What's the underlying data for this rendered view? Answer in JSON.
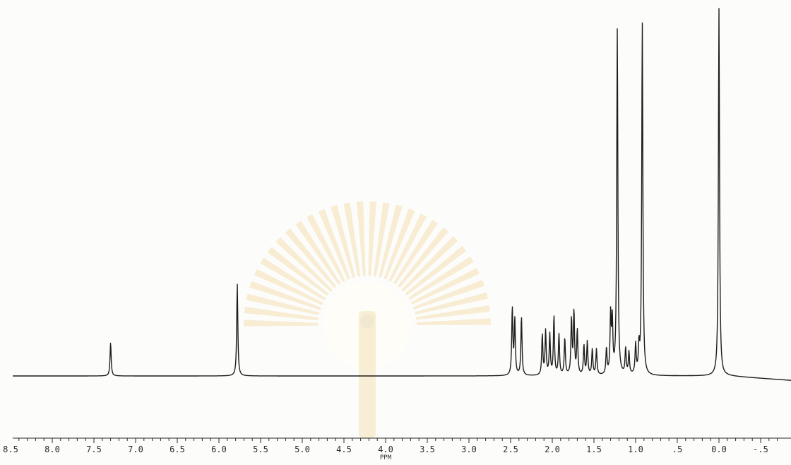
{
  "chart_data": {
    "type": "line",
    "title": "",
    "xlabel": "PPM",
    "ylabel": "",
    "xlim": [
      9.0,
      -0.7
    ],
    "x_reversed": true,
    "grid": false,
    "tick_labels": [
      {
        "value": 8.5,
        "label": "8.5"
      },
      {
        "value": 8.0,
        "label": "8.0"
      },
      {
        "value": 7.5,
        "label": "7.5"
      },
      {
        "value": 7.0,
        "label": "7.0"
      },
      {
        "value": 6.5,
        "label": "6.5"
      },
      {
        "value": 6.0,
        "label": "6.0"
      },
      {
        "value": 5.5,
        "label": "5.5"
      },
      {
        "value": 5.0,
        "label": "5.0"
      },
      {
        "value": 4.5,
        "label": "4.5"
      },
      {
        "value": 4.0,
        "label": "4.0"
      },
      {
        "value": 3.5,
        "label": "3.5"
      },
      {
        "value": 3.0,
        "label": "3.0"
      },
      {
        "value": 2.5,
        "label": "2.5"
      },
      {
        "value": 2.0,
        "label": "2.0"
      },
      {
        "value": 1.5,
        "label": "1.5"
      },
      {
        "value": 1.0,
        "label": "1.0"
      },
      {
        "value": 0.5,
        "label": ".5"
      },
      {
        "value": 0.0,
        "label": "0.0"
      },
      {
        "value": -0.5,
        "label": "-.5"
      }
    ],
    "series": [
      {
        "peaks": [
          {
            "ppm": 7.3,
            "height": 0.09
          },
          {
            "ppm": 5.78,
            "height": 0.25
          },
          {
            "ppm": 2.48,
            "height": 0.18
          },
          {
            "ppm": 2.45,
            "height": 0.15
          },
          {
            "ppm": 2.37,
            "height": 0.16
          },
          {
            "ppm": 2.12,
            "height": 0.11
          },
          {
            "ppm": 2.08,
            "height": 0.12
          },
          {
            "ppm": 2.03,
            "height": 0.11
          },
          {
            "ppm": 1.98,
            "height": 0.16
          },
          {
            "ppm": 1.92,
            "height": 0.11
          },
          {
            "ppm": 1.85,
            "height": 0.1
          },
          {
            "ppm": 1.77,
            "height": 0.15
          },
          {
            "ppm": 1.74,
            "height": 0.17
          },
          {
            "ppm": 1.7,
            "height": 0.12
          },
          {
            "ppm": 1.62,
            "height": 0.08
          },
          {
            "ppm": 1.58,
            "height": 0.09
          },
          {
            "ppm": 1.52,
            "height": 0.07
          },
          {
            "ppm": 1.47,
            "height": 0.07
          },
          {
            "ppm": 1.35,
            "height": 0.07
          },
          {
            "ppm": 1.3,
            "height": 0.16
          },
          {
            "ppm": 1.28,
            "height": 0.14
          },
          {
            "ppm": 1.22,
            "height": 0.94
          },
          {
            "ppm": 1.12,
            "height": 0.07
          },
          {
            "ppm": 1.08,
            "height": 0.06
          },
          {
            "ppm": 1.0,
            "height": 0.08
          },
          {
            "ppm": 0.96,
            "height": 0.07
          },
          {
            "ppm": 0.92,
            "height": 0.96
          },
          {
            "ppm": 0.0,
            "height": 1.0
          }
        ]
      }
    ]
  },
  "watermark": {
    "color": "#f2d9a4"
  }
}
